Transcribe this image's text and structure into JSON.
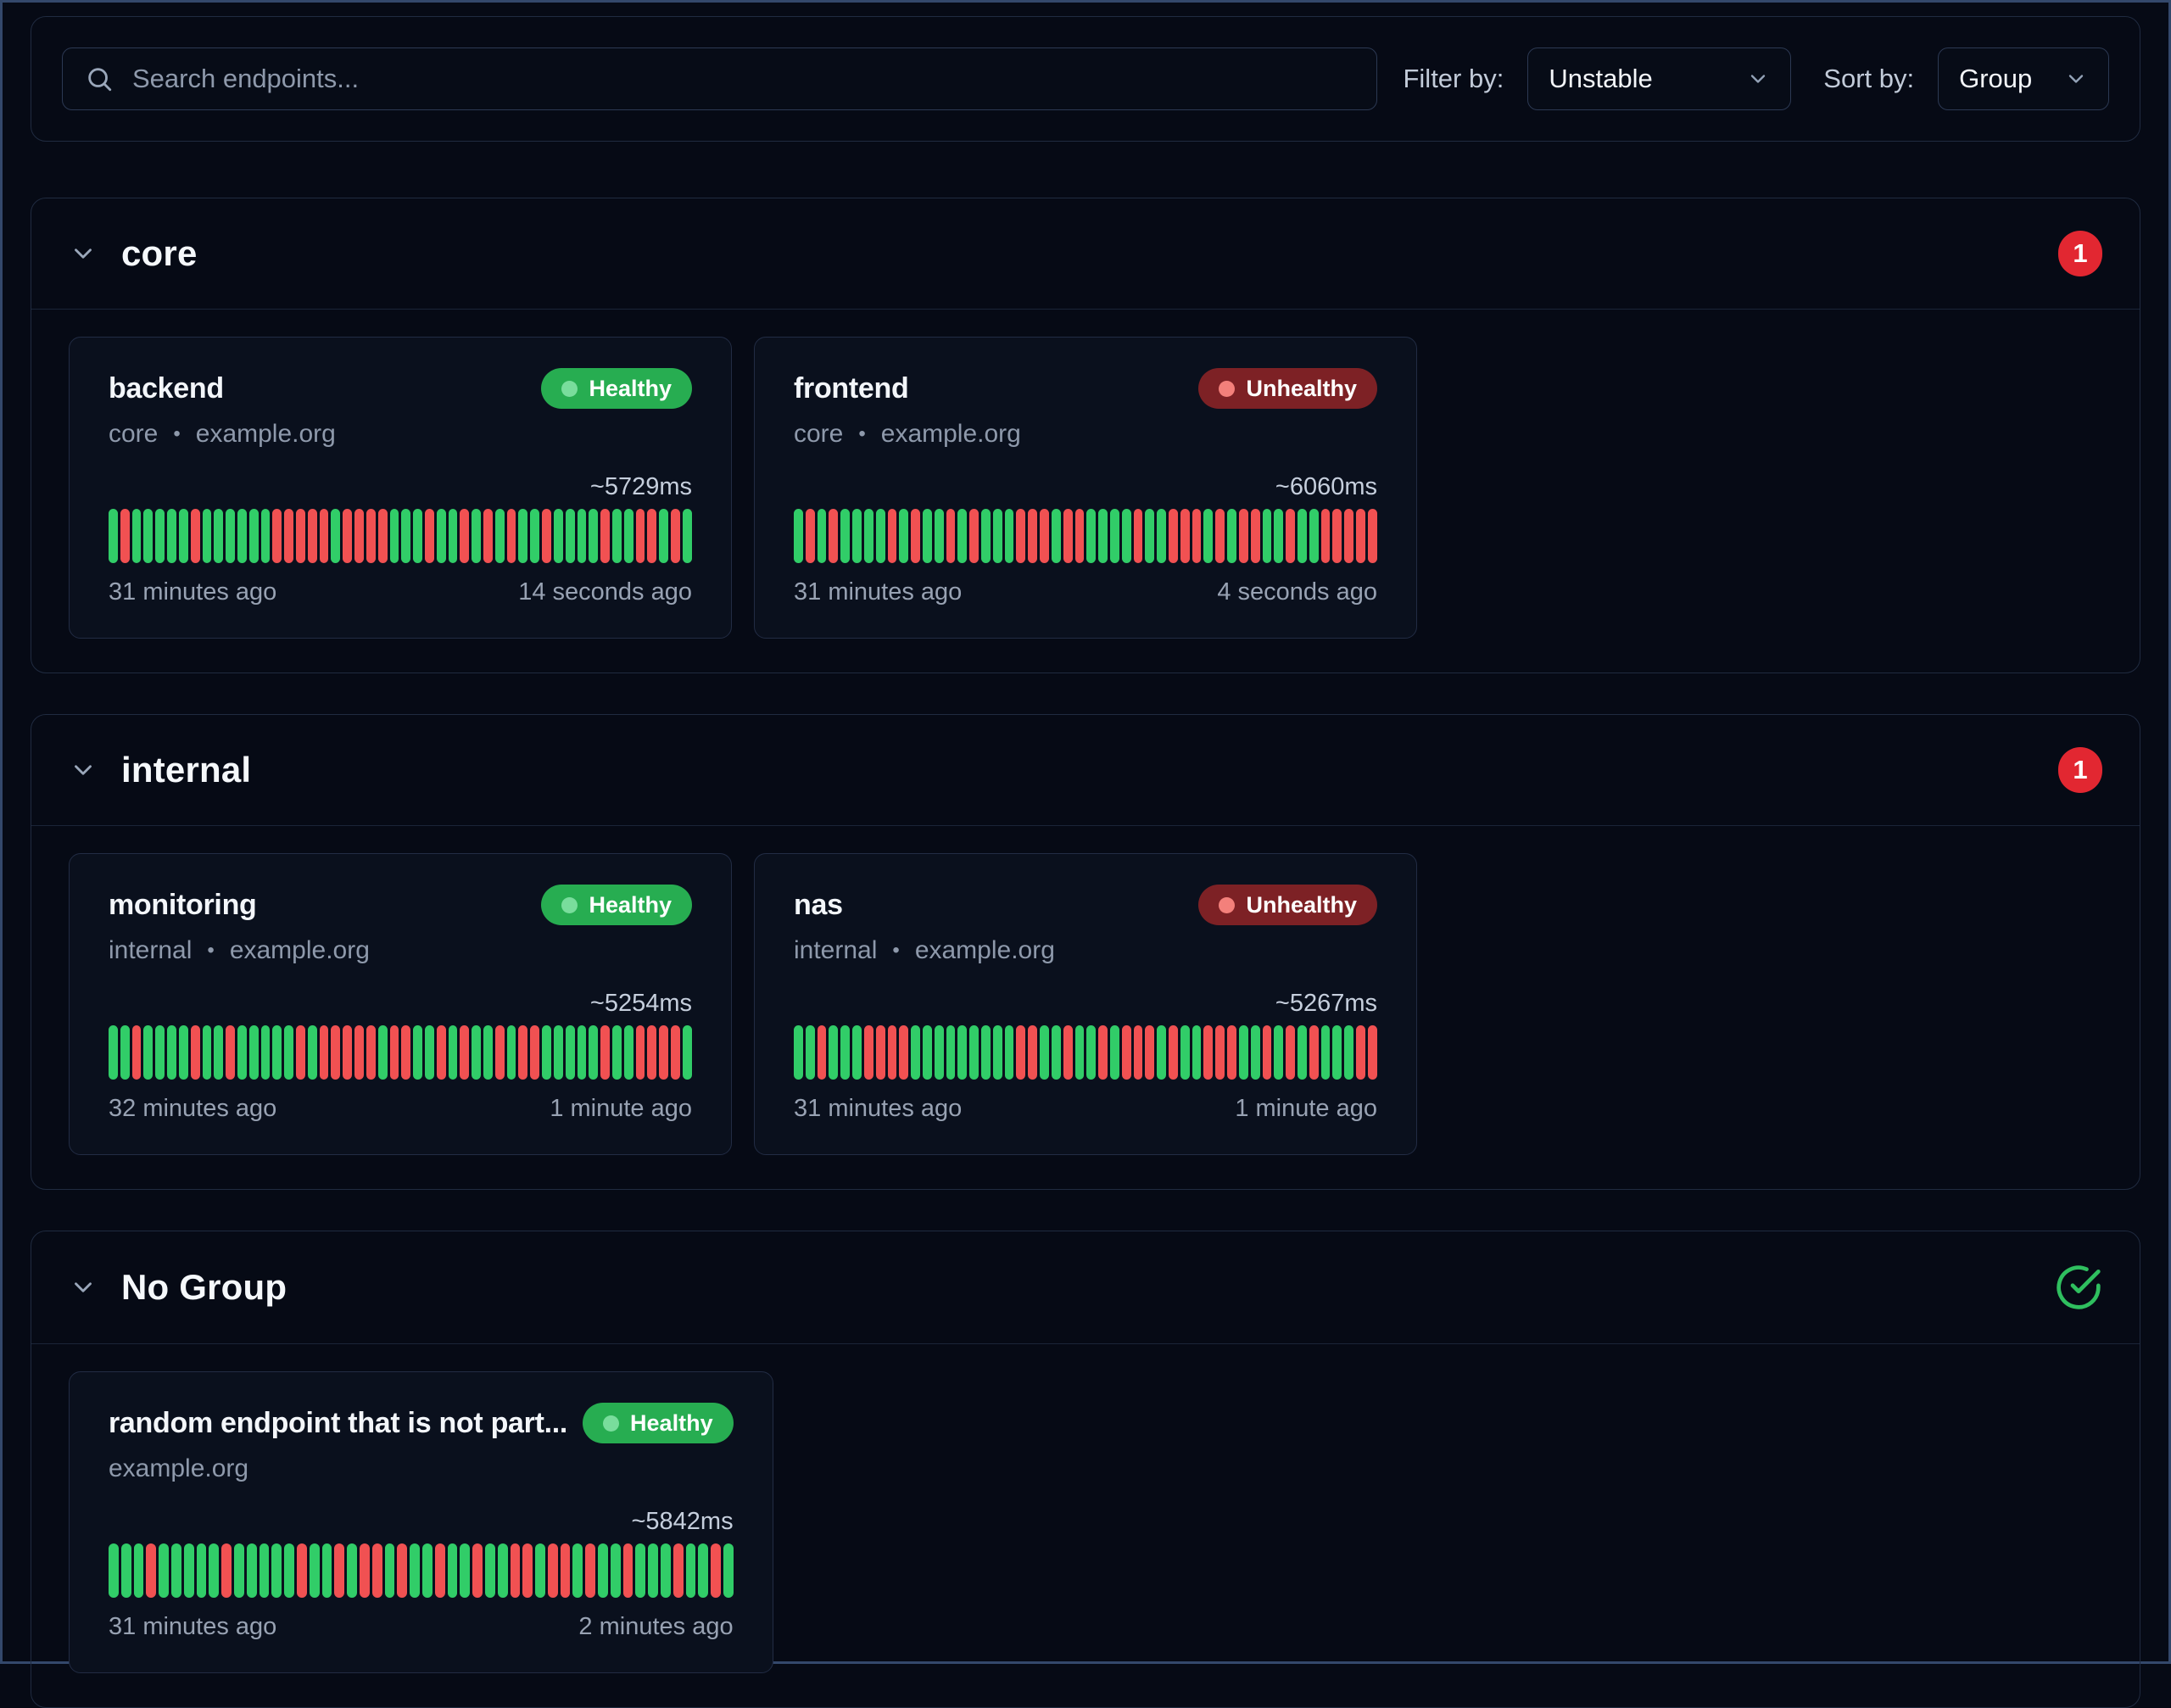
{
  "toolbar": {
    "search_placeholder": "Search endpoints...",
    "filter_label": "Filter by:",
    "filter_value": "Unstable",
    "sort_label": "Sort by:",
    "sort_value": "Group"
  },
  "ui": {
    "subtitle_separator": "•"
  },
  "colors": {
    "healthy": "#27ad51",
    "healthy_dot": "#79dd9c",
    "unhealthy": "#7d2125",
    "unhealthy_dot": "#f3807b",
    "bar_up": "#31cd68",
    "bar_down": "#f15152",
    "count_badge": "#e22731",
    "check": "#2fbf5f"
  },
  "groups": [
    {
      "name": "core",
      "badge": {
        "type": "count",
        "value": "1"
      },
      "endpoints": [
        {
          "name": "backend",
          "status": "Healthy",
          "group": "core",
          "host": "example.org",
          "response_time": "~5729ms",
          "oldest": "31 minutes ago",
          "newest": "14 seconds ago",
          "bars": "GRGGGGGRGGGGGGRRRRRGRRRRGGGRGGRGRGRGGRGGGGRGGRRGRG"
        },
        {
          "name": "frontend",
          "status": "Unhealthy",
          "group": "core",
          "host": "example.org",
          "response_time": "~6060ms",
          "oldest": "31 minutes ago",
          "newest": "4 seconds ago",
          "bars": "GRGRGGGGRGRGGRGRGGGRRRGRRGGGGRGGRRRGRGRRGGRGGRRRRR"
        }
      ]
    },
    {
      "name": "internal",
      "badge": {
        "type": "count",
        "value": "1"
      },
      "endpoints": [
        {
          "name": "monitoring",
          "status": "Healthy",
          "group": "internal",
          "host": "example.org",
          "response_time": "~5254ms",
          "oldest": "32 minutes ago",
          "newest": "1 minute ago",
          "bars": "GGRGGGGRGGRGGGGGRGRRRRRGRRGGRGRGGRGRRGGGGGRGGRRRRG"
        },
        {
          "name": "nas",
          "status": "Unhealthy",
          "group": "internal",
          "host": "example.org",
          "response_time": "~5267ms",
          "oldest": "31 minutes ago",
          "newest": "1 minute ago",
          "bars": "GGRGGGRRRRGGGGGGGGGRRGGRGGRGRRRGRGGRRRGGRGRGRGGGRR"
        }
      ]
    },
    {
      "name": "No Group",
      "badge": {
        "type": "ok"
      },
      "endpoints": [
        {
          "name": "random endpoint that is not part...",
          "status": "Healthy",
          "group": "",
          "host": "example.org",
          "response_time": "~5842ms",
          "oldest": "31 minutes ago",
          "newest": "2 minutes ago",
          "bars": "GGGRGGGGGRGGGGGRGGRGRRGRGGRGGRGGRRGRRGRGGRGGGRGGRG"
        }
      ]
    }
  ]
}
